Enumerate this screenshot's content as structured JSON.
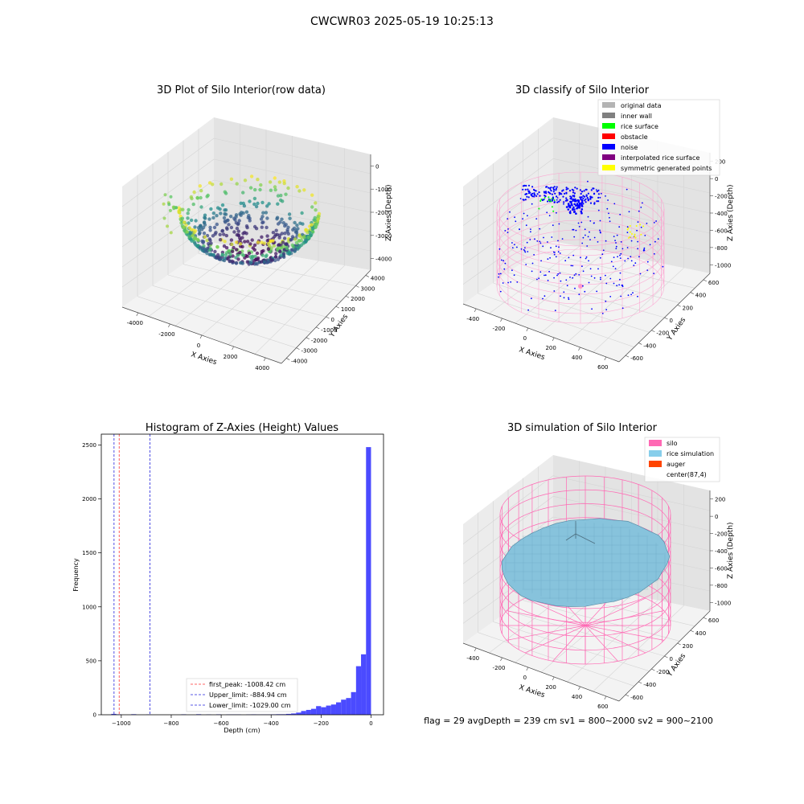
{
  "figure": {
    "title": "CWCWR03 2025-05-19 10:25:13",
    "footer": "flag = 29  avgDepth = 239 cm  sv1 = 800~2000  sv2 = 900~2100"
  },
  "chart_data": [
    {
      "type": "scatter3d",
      "title": "3D Plot of Silo Interior(row data)",
      "xlabel": "X Axies",
      "ylabel": "Y Axies",
      "zlabel": "Z Axies (Depth)",
      "xticks": [
        "-4000",
        "-2000",
        "0",
        "2000",
        "4000"
      ],
      "yticks": [
        "-4000",
        "-3000",
        "-2000",
        "-1000",
        "0",
        "1000",
        "2000",
        "3000",
        "4000"
      ],
      "zticks": [
        "-4000",
        "-3000",
        "-2000",
        "-1000",
        "0"
      ],
      "xlim": [
        -4500,
        4500
      ],
      "ylim": [
        -4500,
        4500
      ],
      "zlim": [
        -4500,
        200
      ],
      "colormap": "viridis",
      "description_of_points": "hemispherical shell of points, colored by depth from purple (deep) to yellow (shallow)"
    },
    {
      "type": "scatter3d",
      "title": "3D classify of Silo Interior",
      "xlabel": "X Axies",
      "ylabel": "Y Axies",
      "zlabel": "Z Axies (Depth)",
      "xticks": [
        "-400",
        "-200",
        "0",
        "200",
        "400",
        "600"
      ],
      "yticks": [
        "-600",
        "-400",
        "-200",
        "0",
        "200",
        "400",
        "600"
      ],
      "zticks": [
        "-1000",
        "-800",
        "-600",
        "-400",
        "-200",
        "0",
        "200"
      ],
      "legend_position": "top-right",
      "legend": [
        {
          "label": "original data",
          "color": "#b4b4b4"
        },
        {
          "label": "inner wall",
          "color": "#808080"
        },
        {
          "label": "rice surface",
          "color": "#00ff00"
        },
        {
          "label": "obstacle",
          "color": "#ff0000"
        },
        {
          "label": "noise",
          "color": "#0000ff"
        },
        {
          "label": "interpolated rice surface",
          "color": "#800080"
        },
        {
          "label": "symmetric generated points",
          "color": "#ffff00"
        }
      ]
    },
    {
      "type": "bar",
      "title": "Histogram of Z-Axies (Height) Values",
      "xlabel": "Depth (cm)",
      "ylabel": "Frequency",
      "xlim": [
        -1080,
        50
      ],
      "ylim": [
        0,
        2600
      ],
      "xticks": [
        -1000,
        -800,
        -600,
        -400,
        -200,
        0
      ],
      "xtick_labels": [
        "−1000",
        "−800",
        "−600",
        "−400",
        "−200",
        "0"
      ],
      "yticks": [
        0,
        500,
        1000,
        1500,
        2000,
        2500
      ],
      "bar_color": "#4b4bff",
      "bin_width": 20,
      "bins": [
        {
          "left": -1040,
          "value": 8
        },
        {
          "left": -1020,
          "value": 4
        },
        {
          "left": -960,
          "value": 5
        },
        {
          "left": -900,
          "value": 3
        },
        {
          "left": -760,
          "value": 4
        },
        {
          "left": -700,
          "value": 5
        },
        {
          "left": -660,
          "value": 3
        },
        {
          "left": -620,
          "value": 4
        },
        {
          "left": -580,
          "value": 3
        },
        {
          "left": -560,
          "value": 3
        },
        {
          "left": -540,
          "value": 3
        },
        {
          "left": -500,
          "value": 3
        },
        {
          "left": -480,
          "value": 4
        },
        {
          "left": -460,
          "value": 3
        },
        {
          "left": -440,
          "value": 3
        },
        {
          "left": -420,
          "value": 3
        },
        {
          "left": -400,
          "value": 4
        },
        {
          "left": -380,
          "value": 5
        },
        {
          "left": -360,
          "value": 5
        },
        {
          "left": -340,
          "value": 8
        },
        {
          "left": -320,
          "value": 12
        },
        {
          "left": -300,
          "value": 20
        },
        {
          "left": -280,
          "value": 35
        },
        {
          "left": -260,
          "value": 45
        },
        {
          "left": -240,
          "value": 55
        },
        {
          "left": -220,
          "value": 80
        },
        {
          "left": -200,
          "value": 70
        },
        {
          "left": -180,
          "value": 85
        },
        {
          "left": -160,
          "value": 95
        },
        {
          "left": -140,
          "value": 115
        },
        {
          "left": -120,
          "value": 140
        },
        {
          "left": -100,
          "value": 155
        },
        {
          "left": -80,
          "value": 210
        },
        {
          "left": -60,
          "value": 450
        },
        {
          "left": -40,
          "value": 560
        },
        {
          "left": -20,
          "value": 2480
        }
      ],
      "vlines": [
        {
          "x": -1008.42,
          "color": "#ff3333",
          "label": "first_peak: -1008.42 cm"
        },
        {
          "x": -884.94,
          "color": "#2222dd",
          "label": "Upper_limit: -884.94 cm"
        },
        {
          "x": -1029.0,
          "color": "#2222dd",
          "label": "Lower_limit: -1029.00 cm"
        }
      ]
    },
    {
      "type": "surface3d",
      "title": "3D simulation of Silo Interior",
      "xlabel": "X Axies",
      "ylabel": "Y Axies",
      "zlabel": "Z Axies (Depth)",
      "xticks": [
        "-400",
        "-200",
        "0",
        "200",
        "400",
        "600"
      ],
      "yticks": [
        "-600",
        "-400",
        "-200",
        "0",
        "200",
        "400",
        "600"
      ],
      "zticks": [
        "-1000",
        "-800",
        "-600",
        "-400",
        "-200",
        "0",
        "200"
      ],
      "legend_position": "top-right",
      "legend": [
        {
          "label": "silo",
          "color": "#ff69b4"
        },
        {
          "label": "rice simulation",
          "color": "#87ceeb"
        },
        {
          "label": "auger",
          "color": "#ff4500"
        },
        {
          "label": "center(87,4)",
          "color": "none"
        }
      ]
    }
  ]
}
